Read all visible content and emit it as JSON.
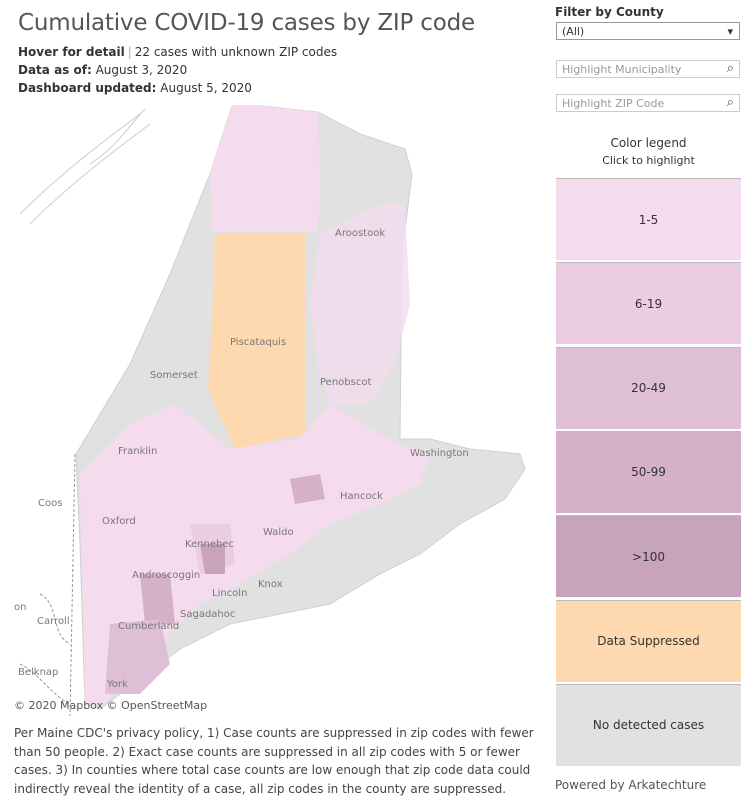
{
  "header": {
    "title": "Cumulative COVID-19 cases by ZIP code",
    "hover": "Hover for detail",
    "unknown": "22 cases with unknown ZIP codes",
    "data_as_of_label": "Data as of:",
    "data_as_of": "August 3, 2020",
    "updated_label": "Dashboard updated:",
    "updated": "August 5, 2020"
  },
  "filters": {
    "county_label": "Filter by County",
    "county_value": "(All)",
    "municipality_placeholder": "Highlight Municipality",
    "zip_placeholder": "Highlight ZIP Code"
  },
  "legend": {
    "title": "Color legend",
    "subtitle": "Click to highlight",
    "items": [
      {
        "label": "1-5",
        "color": "#f4dcee"
      },
      {
        "label": "6-19",
        "color": "#eacde2"
      },
      {
        "label": "20-49",
        "color": "#dfbfd5"
      },
      {
        "label": "50-99",
        "color": "#d4b1c9"
      },
      {
        "label": ">100",
        "color": "#c8a3bc"
      },
      {
        "label": "Data Suppressed",
        "color": "#fed9b0"
      },
      {
        "label": "No detected cases",
        "color": "#e1e1e1"
      }
    ]
  },
  "map": {
    "labels": [
      "Aroostook",
      "Piscataquis",
      "Somerset",
      "Penobscot",
      "Franklin",
      "Washington",
      "Hancock",
      "Oxford",
      "Kennebec",
      "Waldo",
      "Androscoggin",
      "Lincoln",
      "Knox",
      "Sagadahoc",
      "Cumberland",
      "York",
      "Coos",
      "Carroll",
      "Belknap",
      "on"
    ],
    "attribution": "© 2020 Mapbox © OpenStreetMap"
  },
  "note": "Per Maine CDC's privacy policy, 1) Case counts are suppressed in zip codes with fewer than 50 people. 2) Exact case counts are suppressed in all zip codes with 5 or fewer cases. 3) In counties where total case counts are low enough that zip code data could indirectly reveal the identity of a case, all zip codes in the county are suppressed.",
  "footer": "Powered by Arkatechture"
}
